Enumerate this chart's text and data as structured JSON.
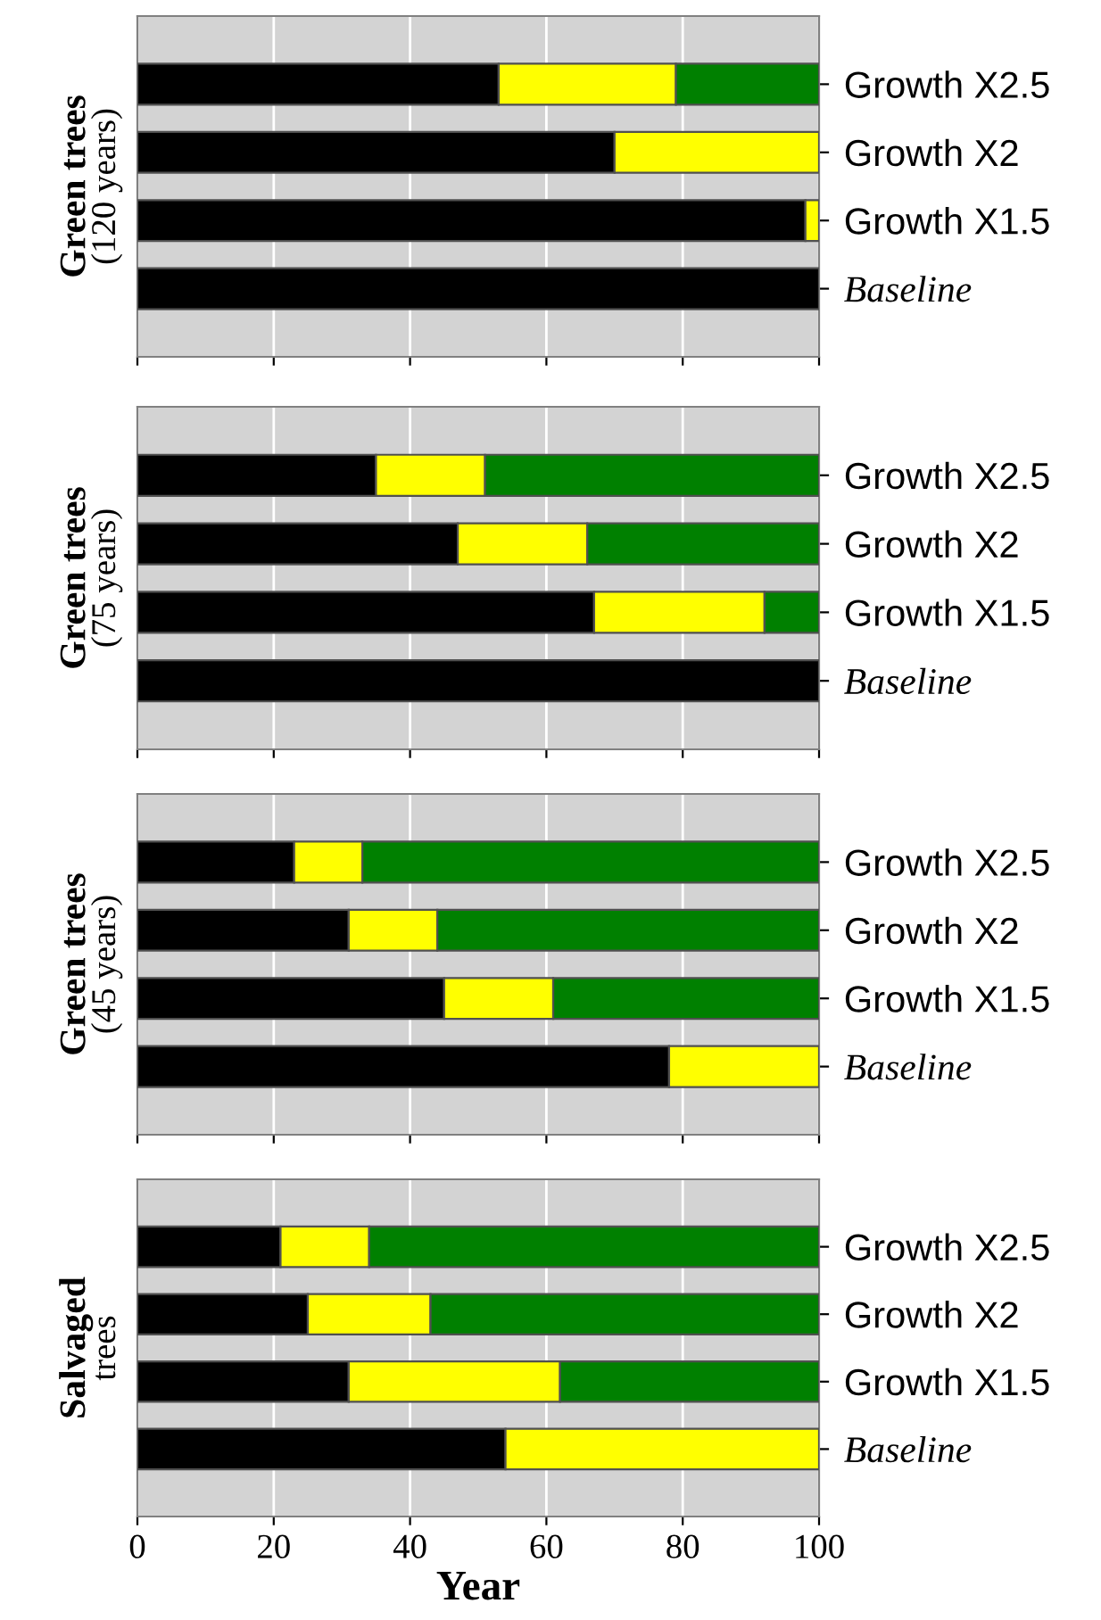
{
  "chart_data": [
    {
      "type": "bar",
      "orientation": "horizontal",
      "stacked": true,
      "ylabel": "Green trees\n(120 years)",
      "categories": [
        "Growth X2.5",
        "Growth X2",
        "Growth X1.5",
        "Baseline"
      ],
      "xlim": [
        0,
        100
      ],
      "xticks": [
        0,
        20,
        40,
        60,
        80,
        100
      ],
      "grid": "x",
      "tick_labels": "y",
      "legend": false,
      "series": [
        {
          "color": "#000000",
          "values": [
            53,
            70,
            98,
            100
          ]
        },
        {
          "color": "#ffff00",
          "values": [
            26,
            30,
            2,
            null
          ]
        },
        {
          "color": "#008000",
          "values": [
            21,
            null,
            null,
            null
          ]
        }
      ]
    },
    {
      "type": "bar",
      "orientation": "horizontal",
      "stacked": true,
      "ylabel": "Green trees\n(75 years)",
      "categories": [
        "Growth X2.5",
        "Growth X2",
        "Growth X1.5",
        "Baseline"
      ],
      "xlim": [
        0,
        100
      ],
      "xticks": [
        0,
        20,
        40,
        60,
        80,
        100
      ],
      "grid": "x",
      "tick_labels": "y",
      "legend": false,
      "series": [
        {
          "color": "#000000",
          "values": [
            35,
            47,
            67,
            100
          ]
        },
        {
          "color": "#ffff00",
          "values": [
            16,
            19,
            25,
            null
          ]
        },
        {
          "color": "#008000",
          "values": [
            49,
            34,
            8,
            null
          ]
        }
      ]
    },
    {
      "type": "bar",
      "orientation": "horizontal",
      "stacked": true,
      "ylabel": "Green trees\n(45 years)",
      "categories": [
        "Growth X2.5",
        "Growth X2",
        "Growth X1.5",
        "Baseline"
      ],
      "xlim": [
        0,
        100
      ],
      "xticks": [
        0,
        20,
        40,
        60,
        80,
        100
      ],
      "grid": "x",
      "tick_labels": "y",
      "legend": false,
      "series": [
        {
          "color": "#000000",
          "values": [
            23,
            31,
            45,
            78
          ]
        },
        {
          "color": "#ffff00",
          "values": [
            10,
            13,
            16,
            22
          ]
        },
        {
          "color": "#008000",
          "values": [
            67,
            56,
            39,
            null
          ]
        }
      ]
    },
    {
      "type": "bar",
      "orientation": "horizontal",
      "stacked": true,
      "ylabel": "Salvaged\ntrees",
      "xlabel": "Year",
      "categories": [
        "Growth X2.5",
        "Growth X2",
        "Growth X1.5",
        "Baseline"
      ],
      "xlim": [
        0,
        100
      ],
      "xticks": [
        0,
        20,
        40,
        60,
        80,
        100
      ],
      "grid": "x",
      "legend": false,
      "series": [
        {
          "color": "#000000",
          "values": [
            21,
            25,
            31,
            54
          ]
        },
        {
          "color": "#ffff00",
          "values": [
            13,
            18,
            31,
            46
          ]
        },
        {
          "color": "#008000",
          "values": [
            66,
            57,
            38,
            null
          ]
        }
      ]
    }
  ]
}
